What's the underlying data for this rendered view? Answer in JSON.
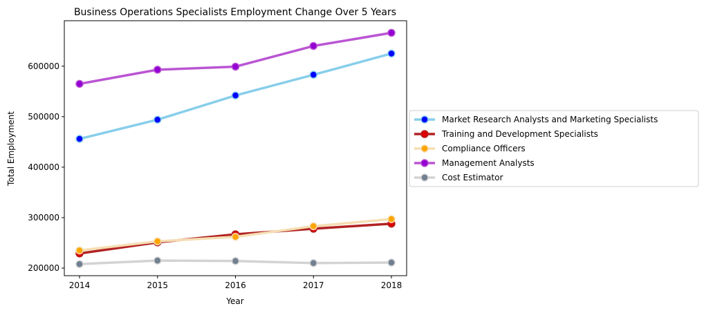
{
  "chart_data": {
    "type": "line",
    "title": "Business Operations Specialists Employment Change Over 5 Years",
    "xlabel": "Year",
    "ylabel": "Total Employment",
    "x": [
      "2014",
      "2015",
      "2016",
      "2017",
      "2018"
    ],
    "yticks": [
      "200000",
      "300000",
      "400000",
      "500000",
      "600000"
    ],
    "ylim": [
      185000,
      690000
    ],
    "grid": false,
    "legend_position": "center-right, outside plot",
    "series": [
      {
        "name": "Market Research Analysts and Marketing Specialists",
        "line_color": "#87ceeb",
        "marker_color": "#0000ff",
        "values": [
          456000,
          494000,
          542000,
          583000,
          625000
        ]
      },
      {
        "name": "Training and Development Specialists",
        "line_color": "#b22222",
        "marker_color": "#e00000",
        "values": [
          229000,
          251000,
          267000,
          278000,
          288000
        ]
      },
      {
        "name": "Compliance Officers",
        "line_color": "#f5deb3",
        "marker_color": "#ffa500",
        "values": [
          235000,
          253000,
          262000,
          283000,
          297000
        ]
      },
      {
        "name": "Management Analysts",
        "line_color": "#ba55d3",
        "marker_color": "#9400d3",
        "values": [
          565000,
          593000,
          599000,
          640000,
          666000
        ]
      },
      {
        "name": "Cost Estimator",
        "line_color": "#d3d3d3",
        "marker_color": "#708090",
        "values": [
          208000,
          215000,
          214000,
          210000,
          211000
        ]
      }
    ]
  }
}
